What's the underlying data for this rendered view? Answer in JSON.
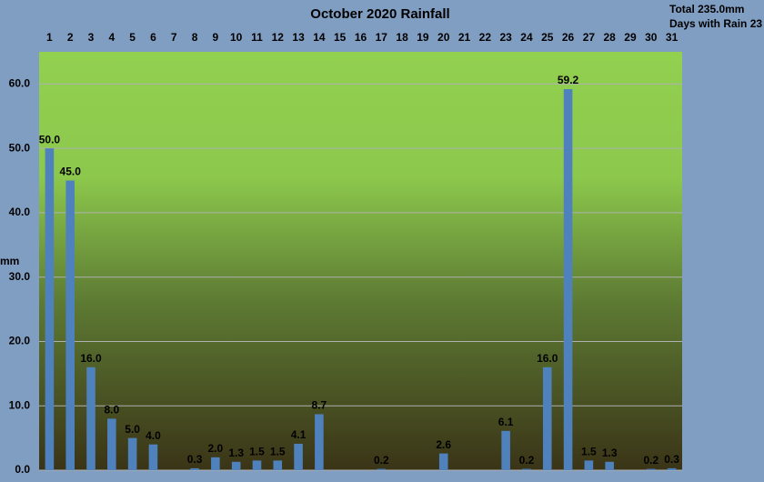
{
  "chart_data": {
    "type": "bar",
    "title": "October 2020 Rainfall",
    "y_label": "mm",
    "annotations": [
      "Total 235.0mm",
      "Days with Rain 23"
    ],
    "categories": [
      "1",
      "2",
      "3",
      "4",
      "5",
      "6",
      "7",
      "8",
      "9",
      "10",
      "11",
      "12",
      "13",
      "14",
      "15",
      "16",
      "17",
      "18",
      "19",
      "20",
      "21",
      "22",
      "23",
      "24",
      "25",
      "26",
      "27",
      "28",
      "29",
      "30",
      "31"
    ],
    "values": [
      50.0,
      45.0,
      16.0,
      8.0,
      5.0,
      4.0,
      0,
      0.3,
      2.0,
      1.3,
      1.5,
      1.5,
      4.1,
      8.7,
      0,
      0,
      0.2,
      0,
      0,
      2.6,
      0,
      0,
      6.1,
      0.2,
      16.0,
      59.2,
      1.5,
      1.3,
      0,
      0.2,
      0.3
    ],
    "value_labels": [
      "50.0",
      "45.0",
      "16.0",
      "8.0",
      "5.0",
      "4.0",
      null,
      "0.3",
      "2.0",
      "1.3",
      "1.5",
      "1.5",
      "4.1",
      "8.7",
      null,
      null,
      "0.2",
      null,
      null,
      "2.6",
      null,
      null,
      "6.1",
      "0.2",
      "16.0",
      "59.2",
      "1.5",
      "1.3",
      null,
      "0.2",
      "0.3"
    ],
    "color": "#4f81bd",
    "ylim": [
      0,
      65
    ],
    "yticks": [
      {
        "value": 0,
        "label": "0.0"
      },
      {
        "value": 10,
        "label": "10.0"
      },
      {
        "value": 20,
        "label": "20.0"
      },
      {
        "value": 30,
        "label": "30.0"
      },
      {
        "value": 40,
        "label": "40.0"
      },
      {
        "value": 50,
        "label": "50.0"
      },
      {
        "value": 60,
        "label": "60.0"
      }
    ],
    "grid": true
  }
}
